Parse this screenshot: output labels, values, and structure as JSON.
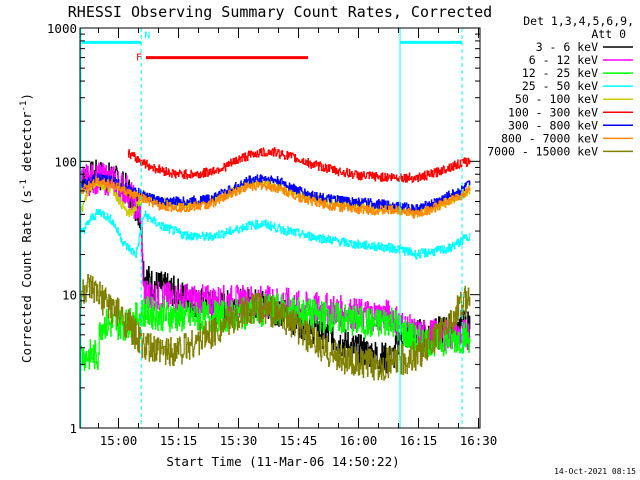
{
  "chart_data": {
    "type": "line",
    "title": "RHESSI Observing Summary Count Rates, Corrected",
    "xlabel": "Start Time (11-Mar-06 14:50:22)",
    "ylabel": "Corrected Count Rate (s",
    "ylabel_exp1": "-1",
    "ylabel_mid": " detector",
    "ylabel_exp2": "-1",
    "ylabel_end": ")",
    "x_unit": "minutes since 14:50:22",
    "xlim": [
      0,
      100
    ],
    "ylim": [
      1,
      1000
    ],
    "yscale": "log",
    "x_ticks": [
      {
        "value": 9.63,
        "label": "15:00"
      },
      {
        "value": 24.63,
        "label": "15:15"
      },
      {
        "value": 39.63,
        "label": "15:30"
      },
      {
        "value": 54.63,
        "label": "15:45"
      },
      {
        "value": 69.63,
        "label": "16:00"
      },
      {
        "value": 84.63,
        "label": "16:15"
      },
      {
        "value": 99.63,
        "label": "16:30"
      }
    ],
    "y_ticks": [
      {
        "value": 1,
        "label": "1"
      },
      {
        "value": 10,
        "label": "10"
      },
      {
        "value": 100,
        "label": "100"
      },
      {
        "value": 1000,
        "label": "1000"
      }
    ],
    "legend_header": [
      "Det 1,3,4,5,6,9,",
      "Att 0"
    ],
    "legend_placement": "right",
    "series": [
      {
        "name": "3 - 6 keV",
        "color": "#000000",
        "points": [
          [
            0,
            72
          ],
          [
            4,
            78
          ],
          [
            8,
            75
          ],
          [
            12,
            60
          ],
          [
            15,
            40
          ],
          [
            16,
            14
          ],
          [
            18,
            12
          ],
          [
            22,
            11
          ],
          [
            28,
            9
          ],
          [
            34,
            8
          ],
          [
            40,
            8.5
          ],
          [
            46,
            8.5
          ],
          [
            50,
            7.5
          ],
          [
            56,
            6
          ],
          [
            62,
            5
          ],
          [
            68,
            4
          ],
          [
            74,
            3.5
          ],
          [
            78,
            3.2
          ],
          [
            80,
            5
          ],
          [
            84,
            5
          ],
          [
            88,
            5
          ],
          [
            92,
            5.5
          ],
          [
            96,
            6
          ],
          [
            97.5,
            6
          ]
        ]
      },
      {
        "name": "6 - 12 keV",
        "color": "#ff00ff",
        "points": [
          [
            0,
            70
          ],
          [
            4,
            75
          ],
          [
            8,
            72
          ],
          [
            12,
            60
          ],
          [
            15,
            40
          ],
          [
            16,
            10
          ],
          [
            20,
            9.5
          ],
          [
            26,
            9.3
          ],
          [
            32,
            9
          ],
          [
            38,
            9
          ],
          [
            44,
            9
          ],
          [
            50,
            8.8
          ],
          [
            56,
            8
          ],
          [
            62,
            7.8
          ],
          [
            68,
            7.2
          ],
          [
            74,
            7
          ],
          [
            78,
            7
          ],
          [
            80,
            6
          ],
          [
            84,
            5
          ],
          [
            88,
            5
          ],
          [
            92,
            5
          ],
          [
            96,
            5
          ],
          [
            97.5,
            5
          ]
        ]
      },
      {
        "name": "12 - 25 keV",
        "color": "#00ff00",
        "points": [
          [
            0,
            3.5
          ],
          [
            4.5,
            3.5
          ],
          [
            5,
            6
          ],
          [
            12,
            6
          ],
          [
            15,
            7
          ],
          [
            16,
            7.5
          ],
          [
            20,
            7
          ],
          [
            26,
            6.8
          ],
          [
            32,
            6.8
          ],
          [
            38,
            7
          ],
          [
            44,
            7.5
          ],
          [
            50,
            7.8
          ],
          [
            56,
            7.2
          ],
          [
            62,
            6.8
          ],
          [
            68,
            6.4
          ],
          [
            74,
            6
          ],
          [
            78,
            6.5
          ],
          [
            80,
            5.5
          ],
          [
            84,
            4.5
          ],
          [
            88,
            4.5
          ],
          [
            92,
            4.6
          ],
          [
            96,
            4.8
          ],
          [
            97.5,
            4.8
          ]
        ]
      },
      {
        "name": "25 - 50 keV",
        "color": "#00ffff",
        "points": [
          [
            0,
            28
          ],
          [
            3,
            38
          ],
          [
            5,
            42
          ],
          [
            8,
            36
          ],
          [
            11,
            24
          ],
          [
            14,
            20
          ],
          [
            16,
            40
          ],
          [
            20,
            33
          ],
          [
            26,
            28
          ],
          [
            32,
            27
          ],
          [
            38,
            30
          ],
          [
            42,
            33
          ],
          [
            46,
            34
          ],
          [
            50,
            31
          ],
          [
            56,
            28
          ],
          [
            62,
            26
          ],
          [
            68,
            24
          ],
          [
            74,
            23
          ],
          [
            80,
            22
          ],
          [
            84,
            20
          ],
          [
            88,
            21
          ],
          [
            92,
            22
          ],
          [
            95,
            25
          ],
          [
            97.5,
            28
          ]
        ]
      },
      {
        "name": "50 - 100 keV",
        "color": "#cccc00",
        "points": [
          [
            0,
            40
          ],
          [
            2,
            60
          ],
          [
            4,
            70
          ],
          [
            8,
            62
          ],
          [
            12,
            40
          ],
          [
            14,
            45
          ],
          [
            16,
            55
          ],
          [
            20,
            50
          ],
          [
            26,
            47
          ],
          [
            32,
            50
          ],
          [
            38,
            60
          ],
          [
            42,
            68
          ],
          [
            46,
            70
          ],
          [
            50,
            65
          ],
          [
            56,
            55
          ],
          [
            62,
            50
          ],
          [
            68,
            47
          ],
          [
            74,
            45
          ],
          [
            80,
            45
          ],
          [
            84,
            40
          ],
          [
            88,
            45
          ],
          [
            92,
            50
          ],
          [
            95,
            55
          ],
          [
            97.5,
            62
          ]
        ]
      },
      {
        "name": "100 - 300 keV",
        "color": "#ff0000",
        "points": [
          [
            12,
            115
          ],
          [
            14,
            105
          ],
          [
            18,
            90
          ],
          [
            24,
            80
          ],
          [
            30,
            80
          ],
          [
            36,
            90
          ],
          [
            40,
            105
          ],
          [
            44,
            115
          ],
          [
            48,
            118
          ],
          [
            52,
            110
          ],
          [
            58,
            95
          ],
          [
            64,
            85
          ],
          [
            70,
            78
          ],
          [
            76,
            76
          ],
          [
            80,
            76
          ],
          [
            84,
            75
          ],
          [
            88,
            80
          ],
          [
            92,
            90
          ],
          [
            96,
            98
          ],
          [
            97.5,
            100
          ]
        ]
      },
      {
        "name": "300 - 800 keV",
        "color": "#0000ff",
        "points": [
          [
            0,
            65
          ],
          [
            4,
            75
          ],
          [
            8,
            72
          ],
          [
            12,
            62
          ],
          [
            16,
            56
          ],
          [
            20,
            50
          ],
          [
            26,
            50
          ],
          [
            32,
            52
          ],
          [
            38,
            62
          ],
          [
            42,
            72
          ],
          [
            46,
            75
          ],
          [
            50,
            70
          ],
          [
            56,
            58
          ],
          [
            62,
            52
          ],
          [
            68,
            50
          ],
          [
            74,
            48
          ],
          [
            80,
            46
          ],
          [
            84,
            44
          ],
          [
            88,
            48
          ],
          [
            92,
            55
          ],
          [
            95,
            60
          ],
          [
            97.5,
            68
          ]
        ]
      },
      {
        "name": "800 - 7000 keV",
        "color": "#ff8800",
        "points": [
          [
            0,
            60
          ],
          [
            4,
            72
          ],
          [
            8,
            68
          ],
          [
            12,
            58
          ],
          [
            16,
            52
          ],
          [
            20,
            46
          ],
          [
            26,
            45
          ],
          [
            32,
            47
          ],
          [
            38,
            58
          ],
          [
            42,
            65
          ],
          [
            46,
            66
          ],
          [
            50,
            62
          ],
          [
            56,
            52
          ],
          [
            62,
            47
          ],
          [
            68,
            44
          ],
          [
            74,
            43
          ],
          [
            80,
            43
          ],
          [
            84,
            40
          ],
          [
            88,
            44
          ],
          [
            92,
            50
          ],
          [
            95,
            55
          ],
          [
            97.5,
            62
          ]
        ]
      },
      {
        "name": "7000 - 15000 keV",
        "color": "#808000",
        "points": [
          [
            0,
            10
          ],
          [
            2,
            11
          ],
          [
            4,
            10
          ],
          [
            8,
            8
          ],
          [
            12,
            6
          ],
          [
            14,
            5
          ],
          [
            16,
            4
          ],
          [
            20,
            3.7
          ],
          [
            26,
            4
          ],
          [
            32,
            5
          ],
          [
            36,
            6
          ],
          [
            40,
            7
          ],
          [
            44,
            8
          ],
          [
            48,
            7.5
          ],
          [
            52,
            6.5
          ],
          [
            56,
            5
          ],
          [
            60,
            4
          ],
          [
            64,
            3.5
          ],
          [
            70,
            3
          ],
          [
            76,
            3
          ],
          [
            80,
            3.2
          ],
          [
            84,
            3.5
          ],
          [
            88,
            4.5
          ],
          [
            92,
            6
          ],
          [
            95,
            8
          ],
          [
            97.5,
            10
          ]
        ]
      }
    ],
    "intervals": [
      {
        "label": "F",
        "color": "#ff0000",
        "y": 600,
        "x": [
          16.5,
          57
        ],
        "flag": true
      },
      {
        "label": "N",
        "color": "#00ffff",
        "y": 780,
        "x": [
          0.5,
          15.3
        ]
      },
      {
        "label": "",
        "color": "#00ffff",
        "y": 780,
        "x": [
          80,
          95.5
        ]
      }
    ],
    "vlines": [
      {
        "x": 0.2,
        "color": "#00ffff",
        "style": "solid"
      },
      {
        "x": 15.3,
        "color": "#00ffff",
        "style": "dashed"
      },
      {
        "x": 80,
        "color": "#00ffff",
        "style": "solid"
      },
      {
        "x": 95.5,
        "color": "#00ffff",
        "style": "dashed"
      }
    ]
  },
  "footer": {
    "timestamp": "14-Oct-2021 08:15"
  }
}
